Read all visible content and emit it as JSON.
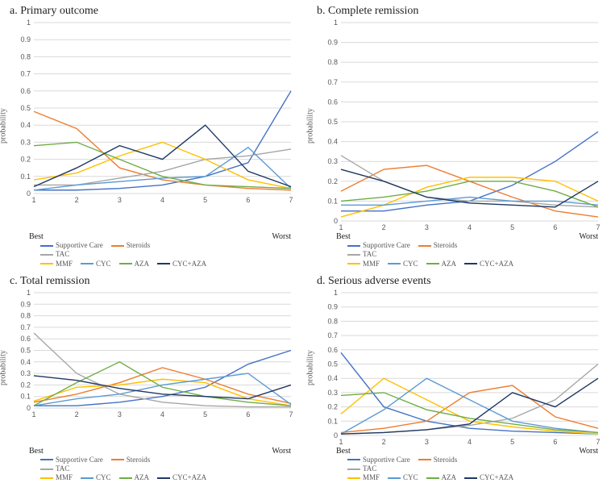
{
  "layout": {
    "cols": 2,
    "rows": 2,
    "background_color": "#ffffff",
    "title_fontsize": 14,
    "label_fontsize": 10,
    "tick_fontsize": 9,
    "ylabel_color": "#595959",
    "axis_color": "#d9d9d9",
    "line_width": 1.4,
    "aspect_per_panel": "landscape"
  },
  "series_meta": [
    {
      "key": "SupportiveCare",
      "label": "Supportive Care",
      "color": "#4472c4"
    },
    {
      "key": "Steroids",
      "label": "Steroids",
      "color": "#ed7d31"
    },
    {
      "key": "TAC",
      "label": "TAC",
      "color": "#a6a6a6"
    },
    {
      "key": "MMF",
      "label": "MMF",
      "color": "#ffc000"
    },
    {
      "key": "CYC",
      "label": "CYC",
      "color": "#5b9bd5"
    },
    {
      "key": "AZA",
      "label": "AZA",
      "color": "#70ad47"
    },
    {
      "key": "CYC_AZA",
      "label": "CYC+AZA",
      "color": "#1f3864"
    }
  ],
  "panels": [
    {
      "id": "a",
      "title": "a. Primary outcome",
      "type": "line",
      "xlabel_best": "Best",
      "xlabel_worst": "Worst",
      "ylabel": "probability",
      "xticks": [
        1,
        2,
        3,
        4,
        5,
        6,
        7
      ],
      "ylim": [
        0,
        1
      ],
      "ytick_step": 0.1,
      "series": {
        "SupportiveCare": [
          0.02,
          0.02,
          0.03,
          0.05,
          0.1,
          0.18,
          0.6
        ],
        "Steroids": [
          0.48,
          0.38,
          0.15,
          0.08,
          0.05,
          0.03,
          0.02
        ],
        "TAC": [
          0.05,
          0.05,
          0.09,
          0.13,
          0.2,
          0.22,
          0.26
        ],
        "MMF": [
          0.08,
          0.12,
          0.22,
          0.3,
          0.2,
          0.08,
          0.03
        ],
        "CYC": [
          0.02,
          0.05,
          0.07,
          0.09,
          0.1,
          0.27,
          0.03
        ],
        "AZA": [
          0.28,
          0.3,
          0.2,
          0.1,
          0.05,
          0.04,
          0.03
        ],
        "CYC_AZA": [
          0.04,
          0.15,
          0.28,
          0.2,
          0.4,
          0.13,
          0.04
        ]
      }
    },
    {
      "id": "b",
      "title": "b. Complete remission",
      "type": "line",
      "xlabel_best": "Best",
      "xlabel_worst": "Worst",
      "ylabel": "probability",
      "xticks": [
        1,
        2,
        3,
        4,
        5,
        6,
        7
      ],
      "ylim": [
        0,
        1
      ],
      "ytick_step": 0.1,
      "series": {
        "SupportiveCare": [
          0.05,
          0.05,
          0.08,
          0.1,
          0.18,
          0.3,
          0.45
        ],
        "Steroids": [
          0.15,
          0.26,
          0.28,
          0.2,
          0.12,
          0.05,
          0.02
        ],
        "TAC": [
          0.33,
          0.2,
          0.12,
          0.1,
          0.1,
          0.08,
          0.07
        ],
        "MMF": [
          0.02,
          0.08,
          0.17,
          0.22,
          0.22,
          0.2,
          0.1
        ],
        "CYC": [
          0.08,
          0.08,
          0.1,
          0.12,
          0.1,
          0.1,
          0.08
        ],
        "AZA": [
          0.1,
          0.12,
          0.15,
          0.2,
          0.2,
          0.15,
          0.07
        ],
        "CYC_AZA": [
          0.26,
          0.2,
          0.12,
          0.09,
          0.08,
          0.07,
          0.2
        ]
      }
    },
    {
      "id": "c",
      "title": "c. Total remission",
      "type": "line",
      "xlabel_best": "Best",
      "xlabel_worst": "Worst",
      "ylabel": "probability",
      "xticks": [
        1,
        2,
        3,
        4,
        5,
        6,
        7
      ],
      "ylim": [
        0,
        1
      ],
      "ytick_step": 0.1,
      "series": {
        "SupportiveCare": [
          0.02,
          0.02,
          0.05,
          0.1,
          0.18,
          0.38,
          0.5
        ],
        "Steroids": [
          0.05,
          0.12,
          0.22,
          0.35,
          0.25,
          0.12,
          0.04
        ],
        "TAC": [
          0.65,
          0.3,
          0.12,
          0.05,
          0.02,
          0.01,
          0.01
        ],
        "MMF": [
          0.06,
          0.18,
          0.2,
          0.25,
          0.22,
          0.08,
          0.02
        ],
        "CYC": [
          0.02,
          0.08,
          0.12,
          0.2,
          0.25,
          0.3,
          0.03
        ],
        "AZA": [
          0.02,
          0.22,
          0.4,
          0.18,
          0.1,
          0.05,
          0.02
        ],
        "CYC_AZA": [
          0.28,
          0.24,
          0.17,
          0.12,
          0.1,
          0.08,
          0.2
        ]
      }
    },
    {
      "id": "d",
      "title": "d. Serious adverse events",
      "type": "line",
      "xlabel_best": "Best",
      "xlabel_worst": "Worst",
      "ylabel": "probability",
      "xticks": [
        1,
        2,
        3,
        4,
        5,
        6,
        7
      ],
      "ylim": [
        0,
        1
      ],
      "ytick_step": 0.1,
      "series": {
        "SupportiveCare": [
          0.58,
          0.2,
          0.1,
          0.05,
          0.03,
          0.02,
          0.01
        ],
        "Steroids": [
          0.02,
          0.05,
          0.1,
          0.3,
          0.35,
          0.13,
          0.05
        ],
        "TAC": [
          0.01,
          0.02,
          0.04,
          0.07,
          0.12,
          0.25,
          0.5
        ],
        "MMF": [
          0.15,
          0.4,
          0.25,
          0.1,
          0.06,
          0.03,
          0.01
        ],
        "CYC": [
          0.01,
          0.18,
          0.4,
          0.25,
          0.1,
          0.05,
          0.02
        ],
        "AZA": [
          0.28,
          0.3,
          0.18,
          0.12,
          0.08,
          0.04,
          0.02
        ],
        "CYC_AZA": [
          0.01,
          0.02,
          0.04,
          0.08,
          0.3,
          0.2,
          0.4
        ]
      }
    }
  ]
}
